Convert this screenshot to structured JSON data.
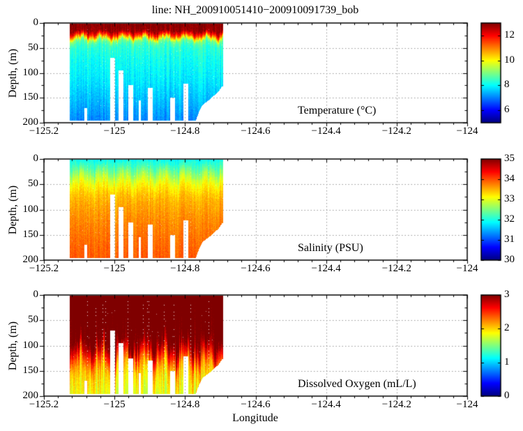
{
  "title": "line: NH_200910051410−200910091739_bob",
  "axes": {
    "xlabel": "Longitude",
    "ylabel": "Depth, (m)",
    "xlim": [
      -125.2,
      -124
    ],
    "ylim": [
      0,
      200
    ],
    "xticks": [
      -125.2,
      -125,
      -124.8,
      -124.6,
      -124.4,
      -124.2,
      -124
    ],
    "xtick_labels": [
      "−125.2",
      "−125",
      "−124.8",
      "−124.6",
      "−124.4",
      "−124.2",
      "−124"
    ],
    "yticks": [
      0,
      50,
      100,
      150,
      200
    ],
    "ytick_labels": [
      "0",
      "50",
      "100",
      "150",
      "200"
    ],
    "x_minor_step": 0.04,
    "y_minor_step": 25,
    "grid": "dotted",
    "grid_color": "#999999"
  },
  "section": {
    "lon_min": -125.127,
    "lon_max": -124.692,
    "surface_depth_m": 2,
    "max_depth_m": 196,
    "bottom_profile": [
      [
        -124.77,
        196
      ],
      [
        -124.76,
        178
      ],
      [
        -124.75,
        164
      ],
      [
        -124.737,
        157
      ],
      [
        -124.727,
        152
      ],
      [
        -124.717,
        145
      ],
      [
        -124.705,
        138
      ],
      [
        -124.695,
        127
      ]
    ],
    "gaps": [
      [
        -125.085,
        -125.077,
        170
      ],
      [
        -125.012,
        -124.998,
        70
      ],
      [
        -124.988,
        -124.974,
        95
      ],
      [
        -124.96,
        -124.947,
        125
      ],
      [
        -124.932,
        -124.925,
        155
      ],
      [
        -124.905,
        -124.891,
        130
      ],
      [
        -124.842,
        -124.828,
        150
      ],
      [
        -124.804,
        -124.79,
        122
      ]
    ]
  },
  "chart_data": [
    {
      "type": "heatmap",
      "label": "Temperature (°C)",
      "colormap": "jet",
      "clim": [
        5,
        13
      ],
      "colorbar_ticks": [
        {
          "value": 12,
          "label": "12"
        },
        {
          "value": 10,
          "label": "10"
        },
        {
          "value": 8,
          "label": "8"
        },
        {
          "value": 6,
          "label": "6"
        }
      ],
      "profile": [
        [
          0,
          13.0
        ],
        [
          16,
          12.8
        ],
        [
          24,
          11.6
        ],
        [
          30,
          10.2
        ],
        [
          36,
          8.9
        ],
        [
          46,
          8.4
        ],
        [
          70,
          8.15
        ],
        [
          110,
          7.9
        ],
        [
          150,
          7.55
        ],
        [
          200,
          7.05
        ]
      ],
      "wave_amp": 8,
      "value_jitter": 0.3
    },
    {
      "type": "heatmap",
      "label": "Salinity (PSU)",
      "colormap": "jet",
      "clim": [
        30,
        35
      ],
      "colorbar_ticks": [
        {
          "value": 35,
          "label": "35"
        },
        {
          "value": 34,
          "label": "34"
        },
        {
          "value": 33,
          "label": "33"
        },
        {
          "value": 32,
          "label": "32"
        },
        {
          "value": 31,
          "label": "31"
        },
        {
          "value": 30,
          "label": "30"
        }
      ],
      "profile": [
        [
          0,
          31.9
        ],
        [
          12,
          32.15
        ],
        [
          25,
          32.5
        ],
        [
          40,
          32.9
        ],
        [
          55,
          33.2
        ],
        [
          75,
          33.45
        ],
        [
          110,
          33.65
        ],
        [
          150,
          33.8
        ],
        [
          200,
          33.95
        ]
      ],
      "wave_amp": 13,
      "value_jitter": 0.12
    },
    {
      "type": "heatmap",
      "label": "Dissolved Oxygen (mL/L)",
      "colormap": "jet",
      "clim": [
        0,
        3
      ],
      "colorbar_ticks": [
        {
          "value": 3,
          "label": "3"
        },
        {
          "value": 2,
          "label": "2"
        },
        {
          "value": 1,
          "label": "1"
        },
        {
          "value": 0,
          "label": "0"
        }
      ],
      "profile": [
        [
          0,
          3.3
        ],
        [
          80,
          3.15
        ],
        [
          100,
          2.95
        ],
        [
          120,
          2.55
        ],
        [
          140,
          2.15
        ],
        [
          165,
          1.95
        ],
        [
          200,
          1.8
        ]
      ],
      "wave_amp": 26,
      "value_jitter": 0.22
    }
  ]
}
